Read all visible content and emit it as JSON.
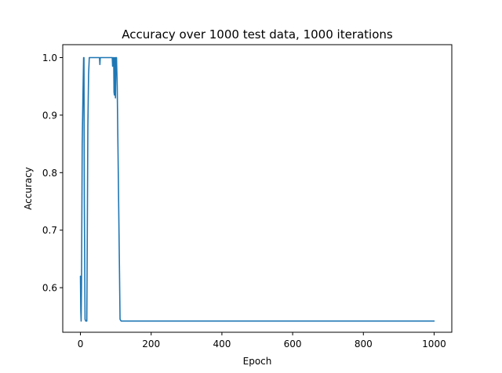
{
  "chart_data": {
    "type": "line",
    "title": "Accuracy over 1000 test data, 1000 iterations",
    "xlabel": "Epoch",
    "ylabel": "Accuracy",
    "xlim": [
      -50,
      1050
    ],
    "ylim": [
      0.5225,
      1.0225
    ],
    "xticks": [
      0,
      200,
      400,
      600,
      800,
      1000
    ],
    "yticks": [
      0.6,
      0.7,
      0.8,
      0.9,
      1.0
    ],
    "xtick_labels": [
      "0",
      "200",
      "400",
      "600",
      "800",
      "1000"
    ],
    "ytick_labels": [
      "0.6",
      "0.7",
      "0.8",
      "0.9",
      "1.0"
    ],
    "grid": false,
    "legend": "none",
    "color": "#1f77b4",
    "series": [
      {
        "x": [
          0,
          1,
          2,
          3,
          5,
          7,
          9,
          10,
          11,
          13,
          15,
          17,
          18,
          19,
          21,
          23,
          25,
          28,
          30,
          40,
          50,
          54,
          55,
          56,
          60,
          70,
          80,
          90,
          91,
          92,
          93,
          94,
          95,
          96,
          97,
          98,
          99,
          100,
          101,
          102,
          104,
          106,
          108,
          110,
          112,
          115,
          120,
          1000
        ],
        "y": [
          0.62,
          0.56,
          0.542,
          0.6,
          0.85,
          0.93,
          1.0,
          1.0,
          0.75,
          0.545,
          0.542,
          0.542,
          0.542,
          0.65,
          0.88,
          0.97,
          1.0,
          1.0,
          1.0,
          1.0,
          1.0,
          1.0,
          0.988,
          1.0,
          1.0,
          1.0,
          1.0,
          1.0,
          0.985,
          1.0,
          0.99,
          1.0,
          0.94,
          0.935,
          1.0,
          0.96,
          0.93,
          1.0,
          1.0,
          1.0,
          0.95,
          0.85,
          0.75,
          0.65,
          0.545,
          0.542,
          0.542,
          0.542
        ]
      }
    ]
  }
}
